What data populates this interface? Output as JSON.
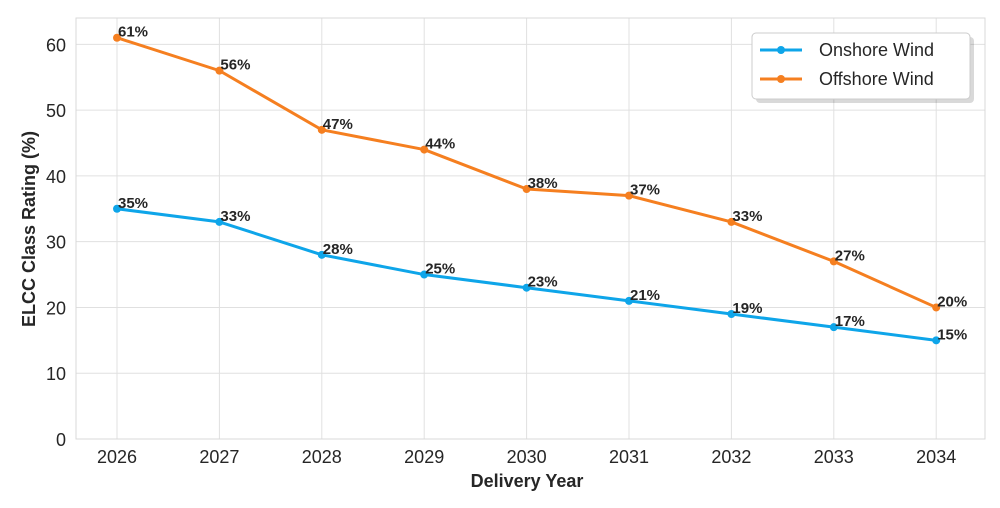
{
  "chart_data": {
    "type": "line",
    "title": "",
    "xlabel": "Delivery Year",
    "ylabel": "ELCC Class Rating (%)",
    "x": [
      2026,
      2027,
      2028,
      2029,
      2030,
      2031,
      2032,
      2033,
      2034
    ],
    "x_tick_labels": [
      "2026",
      "2027",
      "2028",
      "2029",
      "2030",
      "2031",
      "2032",
      "2033",
      "2034"
    ],
    "ylim": [
      0,
      64
    ],
    "y_ticks": [
      0,
      10,
      20,
      30,
      40,
      50,
      60
    ],
    "y_tick_labels": [
      "0",
      "10",
      "20",
      "30",
      "40",
      "50",
      "60"
    ],
    "grid": true,
    "legend_position": "top-right",
    "series": [
      {
        "name": "Onshore Wind",
        "color": "#0ea5e9",
        "values": [
          35,
          33,
          28,
          25,
          23,
          21,
          19,
          17,
          15
        ],
        "labels": [
          "35%",
          "33%",
          "28%",
          "25%",
          "23%",
          "21%",
          "19%",
          "17%",
          "15%"
        ]
      },
      {
        "name": "Offshore Wind",
        "color": "#f57f20",
        "values": [
          61,
          56,
          47,
          44,
          38,
          37,
          33,
          27,
          20
        ],
        "labels": [
          "61%",
          "56%",
          "47%",
          "44%",
          "38%",
          "37%",
          "33%",
          "27%",
          "20%"
        ]
      }
    ]
  }
}
